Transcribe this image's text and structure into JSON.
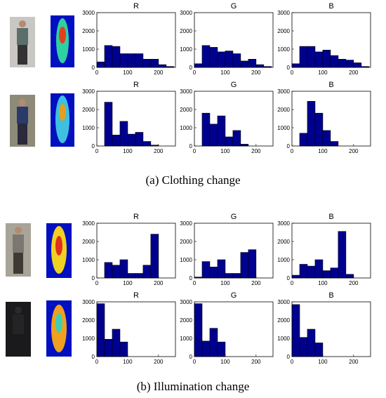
{
  "chart_data": [
    {
      "type": "histogram",
      "title": "R",
      "bins": [
        0,
        25,
        50,
        75,
        100,
        125,
        150,
        175,
        200,
        225,
        250
      ],
      "values": [
        300,
        1200,
        1150,
        750,
        750,
        750,
        450,
        450,
        150,
        50
      ],
      "color": "#00008f",
      "xlim": [
        0,
        255
      ],
      "ylim": [
        0,
        3000
      ],
      "xticks": [
        0,
        100,
        200
      ],
      "yticks": [
        0,
        1000,
        2000,
        3000
      ]
    },
    {
      "type": "histogram",
      "title": "G",
      "bins": [
        0,
        25,
        50,
        75,
        100,
        125,
        150,
        175,
        200,
        225,
        250
      ],
      "values": [
        200,
        1200,
        1100,
        850,
        900,
        750,
        350,
        450,
        150,
        50
      ],
      "color": "#00008f",
      "xlim": [
        0,
        255
      ],
      "ylim": [
        0,
        3000
      ],
      "xticks": [
        0,
        100,
        200
      ],
      "yticks": [
        0,
        1000,
        2000,
        3000
      ]
    },
    {
      "type": "histogram",
      "title": "B",
      "bins": [
        0,
        25,
        50,
        75,
        100,
        125,
        150,
        175,
        200,
        225,
        250
      ],
      "values": [
        200,
        1150,
        1150,
        850,
        950,
        650,
        450,
        400,
        250,
        50
      ],
      "color": "#00008f",
      "xlim": [
        0,
        255
      ],
      "ylim": [
        0,
        3000
      ],
      "xticks": [
        0,
        100,
        200
      ],
      "yticks": [
        0,
        1000,
        2000,
        3000
      ]
    },
    {
      "type": "histogram",
      "title": "R",
      "bins": [
        0,
        25,
        50,
        75,
        100,
        125,
        150,
        175,
        200,
        225,
        250
      ],
      "values": [
        0,
        2400,
        600,
        1350,
        650,
        750,
        250,
        50,
        0,
        0
      ],
      "color": "#00008f",
      "xlim": [
        0,
        255
      ],
      "ylim": [
        0,
        3000
      ],
      "xticks": [
        0,
        100,
        200
      ],
      "yticks": [
        0,
        1000,
        2000,
        3000
      ]
    },
    {
      "type": "histogram",
      "title": "G",
      "bins": [
        0,
        25,
        50,
        75,
        100,
        125,
        150,
        175,
        200,
        225,
        250
      ],
      "values": [
        0,
        1800,
        1200,
        1650,
        500,
        850,
        100,
        0,
        0,
        0
      ],
      "color": "#00008f",
      "xlim": [
        0,
        255
      ],
      "ylim": [
        0,
        3000
      ],
      "xticks": [
        0,
        100,
        200
      ],
      "yticks": [
        0,
        1000,
        2000,
        3000
      ]
    },
    {
      "type": "histogram",
      "title": "B",
      "bins": [
        0,
        25,
        50,
        75,
        100,
        125,
        150,
        175,
        200,
        225,
        250
      ],
      "values": [
        0,
        700,
        2450,
        1800,
        850,
        250,
        0,
        0,
        0,
        0
      ],
      "color": "#00008f",
      "xlim": [
        0,
        255
      ],
      "ylim": [
        0,
        3000
      ],
      "xticks": [
        0,
        100,
        200
      ],
      "yticks": [
        0,
        1000,
        2000,
        3000
      ]
    },
    {
      "type": "histogram",
      "title": "R",
      "bins": [
        0,
        25,
        50,
        75,
        100,
        125,
        150,
        175,
        200,
        225,
        250
      ],
      "values": [
        0,
        850,
        700,
        1000,
        250,
        250,
        700,
        2400,
        0,
        0
      ],
      "color": "#00008f",
      "xlim": [
        0,
        255
      ],
      "ylim": [
        0,
        3000
      ],
      "xticks": [
        0,
        100,
        200
      ],
      "yticks": [
        0,
        1000,
        2000,
        3000
      ]
    },
    {
      "type": "histogram",
      "title": "G",
      "bins": [
        0,
        25,
        50,
        75,
        100,
        125,
        150,
        175,
        200,
        225,
        250
      ],
      "values": [
        50,
        900,
        600,
        1000,
        250,
        250,
        1400,
        1550,
        0,
        0
      ],
      "color": "#00008f",
      "xlim": [
        0,
        255
      ],
      "ylim": [
        0,
        3000
      ],
      "xticks": [
        0,
        100,
        200
      ],
      "yticks": [
        0,
        1000,
        2000,
        3000
      ]
    },
    {
      "type": "histogram",
      "title": "B",
      "bins": [
        0,
        25,
        50,
        75,
        100,
        125,
        150,
        175,
        200,
        225,
        250
      ],
      "values": [
        150,
        750,
        650,
        1000,
        400,
        550,
        2550,
        200,
        0,
        0
      ],
      "color": "#00008f",
      "xlim": [
        0,
        255
      ],
      "ylim": [
        0,
        3000
      ],
      "xticks": [
        0,
        100,
        200
      ],
      "yticks": [
        0,
        1000,
        2000,
        3000
      ]
    },
    {
      "type": "histogram",
      "title": "R",
      "bins": [
        0,
        25,
        50,
        75,
        100,
        125,
        150,
        175,
        200,
        225,
        250
      ],
      "values": [
        2900,
        950,
        1500,
        800,
        0,
        0,
        0,
        0,
        0,
        0
      ],
      "color": "#00008f",
      "xlim": [
        0,
        255
      ],
      "ylim": [
        0,
        3000
      ],
      "xticks": [
        0,
        100,
        200
      ],
      "yticks": [
        0,
        1000,
        2000,
        3000
      ]
    },
    {
      "type": "histogram",
      "title": "G",
      "bins": [
        0,
        25,
        50,
        75,
        100,
        125,
        150,
        175,
        200,
        225,
        250
      ],
      "values": [
        2900,
        850,
        1550,
        800,
        0,
        0,
        0,
        0,
        0,
        0
      ],
      "color": "#00008f",
      "xlim": [
        0,
        255
      ],
      "ylim": [
        0,
        3000
      ],
      "xticks": [
        0,
        100,
        200
      ],
      "yticks": [
        0,
        1000,
        2000,
        3000
      ]
    },
    {
      "type": "histogram",
      "title": "B",
      "bins": [
        0,
        25,
        50,
        75,
        100,
        125,
        150,
        175,
        200,
        225,
        250
      ],
      "values": [
        2850,
        1050,
        1500,
        750,
        0,
        0,
        0,
        0,
        0,
        0
      ],
      "color": "#00008f",
      "xlim": [
        0,
        255
      ],
      "ylim": [
        0,
        3000
      ],
      "xticks": [
        0,
        100,
        200
      ],
      "yticks": [
        0,
        1000,
        2000,
        3000
      ]
    }
  ],
  "captions": [
    "(a) Clothing change",
    "(b) Illumination change"
  ]
}
